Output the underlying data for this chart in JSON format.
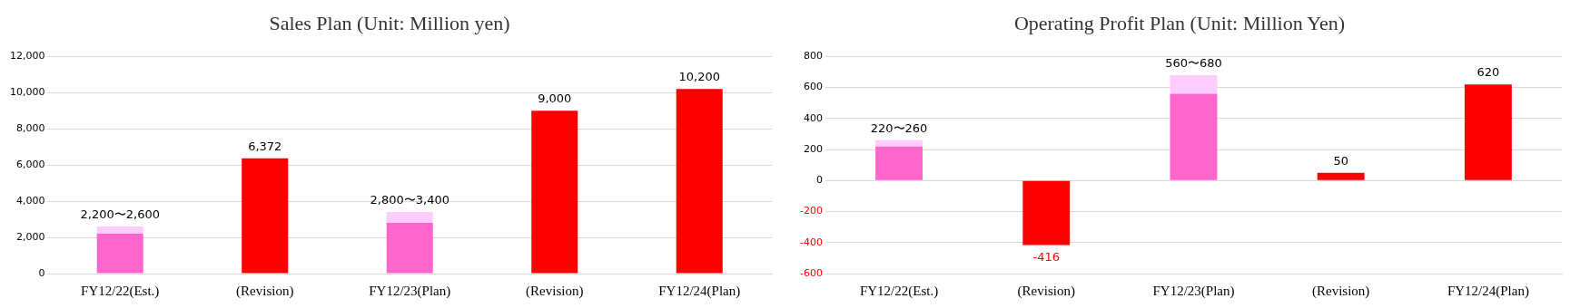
{
  "chart_data": [
    {
      "type": "bar",
      "title": "Sales Plan (Unit: Million yen)",
      "categories": [
        "FY12/22(Est.)",
        "(Revision)",
        "FY12/23(Plan)",
        "(Revision)",
        "FY12/24(Plan)"
      ],
      "stacked": true,
      "series": [
        {
          "color": "#ff66cc",
          "values": [
            2200,
            null,
            2800,
            null,
            null
          ]
        },
        {
          "color": "#ffccff",
          "values": [
            400,
            null,
            600,
            null,
            null
          ]
        },
        {
          "color": "#ff0000",
          "values": [
            null,
            6372,
            null,
            9000,
            10200
          ],
          "value_labels": [
            null,
            "6,372",
            null,
            "9,000",
            "10,200"
          ]
        }
      ],
      "annotations": [
        {
          "text": "2,200〜2,600",
          "x": "FY12/22(Est.)",
          "y": 2600
        },
        {
          "text": "2,800〜3,400",
          "x": "FY12/23(Plan)",
          "y": 3400
        }
      ],
      "ylim": [
        0,
        12000
      ],
      "yticks": [
        {
          "value": 0,
          "label": "0"
        },
        {
          "value": 2000,
          "label": "2,000"
        },
        {
          "value": 4000,
          "label": "4,000"
        },
        {
          "value": 6000,
          "label": "6,000"
        },
        {
          "value": 8000,
          "label": "8,000"
        },
        {
          "value": 10000,
          "label": "10,000"
        },
        {
          "value": 12000,
          "label": "12,000"
        }
      ],
      "grid": "y",
      "legend": false
    },
    {
      "type": "bar",
      "title": "Operating Profit Plan (Unit: Million Yen)",
      "categories": [
        "FY12/22(Est.)",
        "(Revision)",
        "FY12/23(Plan)",
        "(Revision)",
        "FY12/24(Plan)"
      ],
      "stacked": true,
      "series": [
        {
          "color": "#ff66cc",
          "values": [
            220,
            null,
            560,
            null,
            null
          ]
        },
        {
          "color": "#ffccff",
          "values": [
            40,
            null,
            120,
            null,
            null
          ]
        },
        {
          "color": "#ff0000",
          "values": [
            null,
            -416,
            null,
            50,
            620
          ],
          "value_labels": [
            null,
            "-416",
            null,
            "50",
            "620"
          ]
        }
      ],
      "annotations": [
        {
          "text": "220〜260",
          "x": "FY12/22(Est.)",
          "y": 260
        },
        {
          "text": "560〜680",
          "x": "FY12/23(Plan)",
          "y": 680
        }
      ],
      "ylim": [
        -600,
        800
      ],
      "yticks": [
        -600,
        -400,
        -200,
        0,
        200,
        400,
        600,
        800
      ],
      "grid": "y",
      "legend": false
    }
  ]
}
